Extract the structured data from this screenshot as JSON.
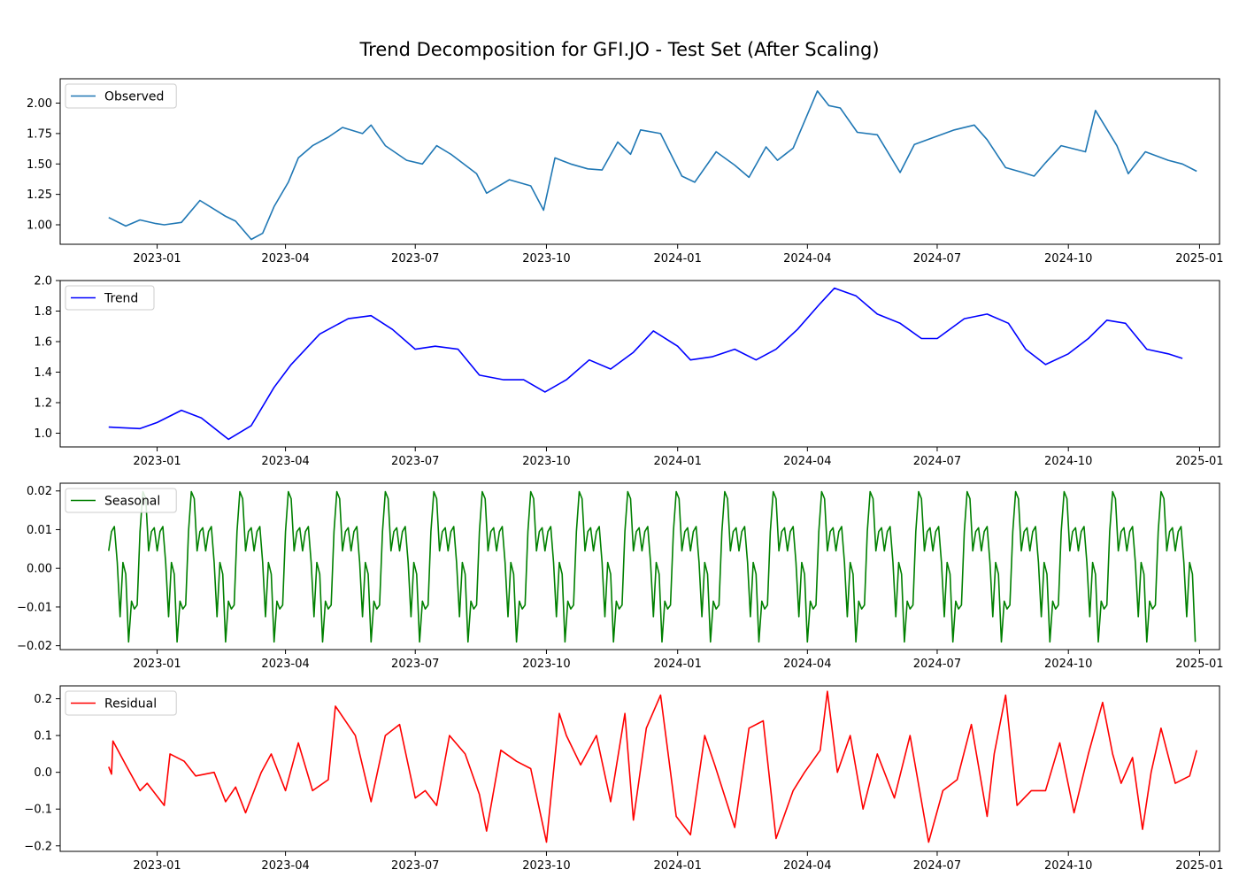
{
  "title": "Trend Decomposition for GFI.JO - Test Set (After Scaling)",
  "chart_data": [
    {
      "type": "line",
      "legend": "top-left",
      "series": [
        {
          "name": "Observed",
          "color": "#1f77b4"
        }
      ],
      "ylim": [
        0.84,
        2.2
      ],
      "yticks": [
        1.0,
        1.25,
        1.5,
        1.75,
        2.0
      ],
      "ytick_labels": [
        "1.00",
        "1.25",
        "1.50",
        "1.75",
        "2.00"
      ],
      "xlim": [
        "2022-10-25",
        "2025-01-15"
      ],
      "xticks": [
        "2023-01-01",
        "2023-04-01",
        "2023-07-01",
        "2023-10-01",
        "2024-01-01",
        "2024-04-01",
        "2024-07-01",
        "2024-10-01",
        "2025-01-01"
      ],
      "xtick_labels": [
        "2023-01",
        "2023-04",
        "2023-07",
        "2023-10",
        "2024-01",
        "2024-04",
        "2024-07",
        "2024-10",
        "2025-01"
      ],
      "x": [
        "2022-11-28",
        "2022-12-10",
        "2022-12-20",
        "2022-12-31",
        "2023-01-06",
        "2023-01-18",
        "2023-01-31",
        "2023-02-07",
        "2023-02-18",
        "2023-02-25",
        "2023-03-08",
        "2023-03-16",
        "2023-03-24",
        "2023-04-03",
        "2023-04-10",
        "2023-04-20",
        "2023-05-01",
        "2023-05-11",
        "2023-05-25",
        "2023-05-31",
        "2023-06-10",
        "2023-06-25",
        "2023-07-06",
        "2023-07-16",
        "2023-07-26",
        "2023-08-13",
        "2023-08-20",
        "2023-09-05",
        "2023-09-20",
        "2023-09-29",
        "2023-10-07",
        "2023-10-18",
        "2023-10-30",
        "2023-11-09",
        "2023-11-20",
        "2023-11-29",
        "2023-12-06",
        "2023-12-20",
        "2024-01-04",
        "2024-01-13",
        "2024-01-28",
        "2024-02-10",
        "2024-02-20",
        "2024-03-03",
        "2024-03-11",
        "2024-03-22",
        "2024-04-08",
        "2024-04-16",
        "2024-04-24",
        "2024-05-06",
        "2024-05-20",
        "2024-06-05",
        "2024-06-15",
        "2024-06-29",
        "2024-07-13",
        "2024-07-27",
        "2024-08-05",
        "2024-08-18",
        "2024-08-30",
        "2024-09-07",
        "2024-09-15",
        "2024-09-26",
        "2024-10-13",
        "2024-10-20",
        "2024-11-04",
        "2024-11-12",
        "2024-11-24",
        "2024-12-10",
        "2024-12-20",
        "2024-12-30"
      ],
      "y": [
        1.06,
        0.99,
        1.04,
        1.01,
        1.0,
        1.02,
        1.2,
        1.15,
        1.07,
        1.03,
        0.88,
        0.93,
        1.15,
        1.35,
        1.55,
        1.65,
        1.72,
        1.8,
        1.75,
        1.82,
        1.65,
        1.53,
        1.5,
        1.65,
        1.58,
        1.42,
        1.26,
        1.37,
        1.32,
        1.12,
        1.55,
        1.5,
        1.46,
        1.45,
        1.68,
        1.58,
        1.78,
        1.75,
        1.4,
        1.35,
        1.6,
        1.49,
        1.39,
        1.64,
        1.53,
        1.63,
        2.1,
        1.98,
        1.96,
        1.76,
        1.74,
        1.43,
        1.66,
        1.72,
        1.78,
        1.82,
        1.7,
        1.47,
        1.43,
        1.4,
        1.51,
        1.65,
        1.6,
        1.94,
        1.65,
        1.42,
        1.6,
        1.53,
        1.5,
        1.44
      ]
    },
    {
      "type": "line",
      "legend": "top-left",
      "series": [
        {
          "name": "Trend",
          "color": "#0000ff"
        }
      ],
      "ylim": [
        0.91,
        2.0
      ],
      "yticks": [
        1.0,
        1.2,
        1.4,
        1.6,
        1.8,
        2.0
      ],
      "ytick_labels": [
        "1.0",
        "1.2",
        "1.4",
        "1.6",
        "1.8",
        "2.0"
      ],
      "xlim": [
        "2022-10-25",
        "2025-01-15"
      ],
      "xticks": [
        "2023-01-01",
        "2023-04-01",
        "2023-07-01",
        "2023-10-01",
        "2024-01-01",
        "2024-04-01",
        "2024-07-01",
        "2024-10-01",
        "2025-01-01"
      ],
      "xtick_labels": [
        "2023-01",
        "2023-04",
        "2023-07",
        "2023-10",
        "2024-01",
        "2024-04",
        "2024-07",
        "2024-10",
        "2025-01"
      ],
      "x": [
        "2022-11-28",
        "2022-12-20",
        "2023-01-01",
        "2023-01-18",
        "2023-02-01",
        "2023-02-20",
        "2023-03-08",
        "2023-03-24",
        "2023-04-05",
        "2023-04-25",
        "2023-05-15",
        "2023-05-31",
        "2023-06-15",
        "2023-07-01",
        "2023-07-15",
        "2023-07-31",
        "2023-08-15",
        "2023-09-01",
        "2023-09-15",
        "2023-09-30",
        "2023-10-15",
        "2023-10-31",
        "2023-11-15",
        "2023-12-01",
        "2023-12-15",
        "2024-01-01",
        "2024-01-10",
        "2024-01-25",
        "2024-02-10",
        "2024-02-25",
        "2024-03-10",
        "2024-03-25",
        "2024-04-10",
        "2024-04-20",
        "2024-05-05",
        "2024-05-20",
        "2024-06-05",
        "2024-06-20",
        "2024-07-01",
        "2024-07-20",
        "2024-08-05",
        "2024-08-20",
        "2024-09-01",
        "2024-09-15",
        "2024-10-01",
        "2024-10-15",
        "2024-10-28",
        "2024-11-10",
        "2024-11-25",
        "2024-12-10",
        "2024-12-20"
      ],
      "y": [
        1.04,
        1.03,
        1.07,
        1.15,
        1.1,
        0.96,
        1.05,
        1.3,
        1.45,
        1.65,
        1.75,
        1.77,
        1.68,
        1.55,
        1.57,
        1.55,
        1.38,
        1.35,
        1.35,
        1.27,
        1.35,
        1.48,
        1.42,
        1.53,
        1.67,
        1.57,
        1.48,
        1.5,
        1.55,
        1.48,
        1.55,
        1.68,
        1.85,
        1.95,
        1.9,
        1.78,
        1.72,
        1.62,
        1.62,
        1.75,
        1.78,
        1.72,
        1.55,
        1.45,
        1.52,
        1.62,
        1.74,
        1.72,
        1.55,
        1.52,
        1.49
      ]
    },
    {
      "type": "line",
      "legend": "top-left",
      "series": [
        {
          "name": "Seasonal",
          "color": "#008000"
        }
      ],
      "ylim": [
        -0.021,
        0.022
      ],
      "yticks": [
        -0.02,
        -0.01,
        0.0,
        0.01,
        0.02
      ],
      "ytick_labels": [
        "−0.02",
        "−0.01",
        "0.00",
        "0.01",
        "0.02"
      ],
      "xlim": [
        "2022-10-25",
        "2025-01-15"
      ],
      "xticks": [
        "2023-01-01",
        "2023-04-01",
        "2023-07-01",
        "2023-10-01",
        "2024-01-01",
        "2024-04-01",
        "2024-07-01",
        "2024-10-01",
        "2025-01-01"
      ],
      "xtick_labels": [
        "2023-01",
        "2023-04",
        "2023-07",
        "2023-10",
        "2024-01",
        "2024-04",
        "2024-07",
        "2024-10",
        "2025-01"
      ],
      "x_start": "2022-11-28",
      "x_step_days": 2,
      "pattern": [
        0.0045,
        0.0095,
        0.0108,
        0.0015,
        -0.0125,
        0.0015,
        -0.0015,
        -0.019,
        -0.0085,
        -0.0105,
        -0.0095,
        0.0095,
        0.0198,
        0.018,
        0.0045,
        0.0095,
        0.0105
      ],
      "x_end": "2024-12-30"
    },
    {
      "type": "line",
      "legend": "top-left",
      "series": [
        {
          "name": "Residual",
          "color": "#ff0000"
        }
      ],
      "ylim": [
        -0.215,
        0.235
      ],
      "yticks": [
        -0.2,
        -0.1,
        0.0,
        0.1,
        0.2
      ],
      "ytick_labels": [
        "−0.2",
        "−0.1",
        "0.0",
        "0.1",
        "0.2"
      ],
      "xlim": [
        "2022-10-25",
        "2025-01-15"
      ],
      "xticks": [
        "2023-01-01",
        "2023-04-01",
        "2023-07-01",
        "2023-10-01",
        "2024-01-01",
        "2024-04-01",
        "2024-07-01",
        "2024-10-01",
        "2025-01-01"
      ],
      "xtick_labels": [
        "2023-01",
        "2023-04",
        "2023-07",
        "2023-10",
        "2024-01",
        "2024-04",
        "2024-07",
        "2024-10",
        "2025-01"
      ],
      "x": [
        "2022-11-28",
        "2022-11-30",
        "2022-12-01",
        "2022-12-10",
        "2022-12-20",
        "2022-12-25",
        "2023-01-06",
        "2023-01-10",
        "2023-01-20",
        "2023-01-28",
        "2023-02-10",
        "2023-02-18",
        "2023-02-25",
        "2023-03-04",
        "2023-03-15",
        "2023-03-22",
        "2023-04-01",
        "2023-04-10",
        "2023-04-20",
        "2023-05-01",
        "2023-05-06",
        "2023-05-20",
        "2023-05-31",
        "2023-06-10",
        "2023-06-20",
        "2023-07-01",
        "2023-07-08",
        "2023-07-16",
        "2023-07-25",
        "2023-08-05",
        "2023-08-15",
        "2023-08-20",
        "2023-08-30",
        "2023-09-10",
        "2023-09-20",
        "2023-10-01",
        "2023-10-10",
        "2023-10-15",
        "2023-10-25",
        "2023-11-05",
        "2023-11-15",
        "2023-11-25",
        "2023-12-01",
        "2023-12-10",
        "2023-12-20",
        "2023-12-31",
        "2024-01-10",
        "2024-01-20",
        "2024-01-27",
        "2024-02-10",
        "2024-02-20",
        "2024-03-01",
        "2024-03-10",
        "2024-03-22",
        "2024-03-30",
        "2024-04-10",
        "2024-04-15",
        "2024-04-22",
        "2024-05-01",
        "2024-05-10",
        "2024-05-20",
        "2024-06-01",
        "2024-06-12",
        "2024-06-25",
        "2024-07-05",
        "2024-07-15",
        "2024-07-25",
        "2024-08-05",
        "2024-08-10",
        "2024-08-18",
        "2024-08-26",
        "2024-09-05",
        "2024-09-15",
        "2024-09-25",
        "2024-10-05",
        "2024-10-15",
        "2024-10-25",
        "2024-11-01",
        "2024-11-07",
        "2024-11-15",
        "2024-11-22",
        "2024-11-28",
        "2024-12-05",
        "2024-12-15",
        "2024-12-25",
        "2024-12-30"
      ],
      "y": [
        0.015,
        -0.005,
        0.085,
        0.02,
        -0.05,
        -0.03,
        -0.09,
        0.05,
        0.03,
        -0.01,
        0.0,
        -0.08,
        -0.04,
        -0.11,
        0.0,
        0.05,
        -0.05,
        0.08,
        -0.05,
        -0.02,
        0.18,
        0.1,
        -0.08,
        0.1,
        0.13,
        -0.07,
        -0.05,
        -0.09,
        0.1,
        0.05,
        -0.06,
        -0.16,
        0.06,
        0.03,
        0.01,
        -0.19,
        0.16,
        0.1,
        0.02,
        0.1,
        -0.08,
        0.16,
        -0.13,
        0.12,
        0.21,
        -0.12,
        -0.17,
        0.1,
        0.02,
        -0.15,
        0.12,
        0.14,
        -0.18,
        -0.05,
        0.0,
        0.06,
        0.22,
        0.0,
        0.1,
        -0.1,
        0.05,
        -0.07,
        0.1,
        -0.19,
        -0.05,
        -0.02,
        0.13,
        -0.12,
        0.05,
        0.21,
        -0.09,
        -0.05,
        -0.05,
        0.08,
        -0.11,
        0.05,
        0.19,
        0.05,
        -0.03,
        0.04,
        -0.155,
        0.0,
        0.12,
        -0.03,
        -0.01,
        0.06
      ]
    }
  ]
}
